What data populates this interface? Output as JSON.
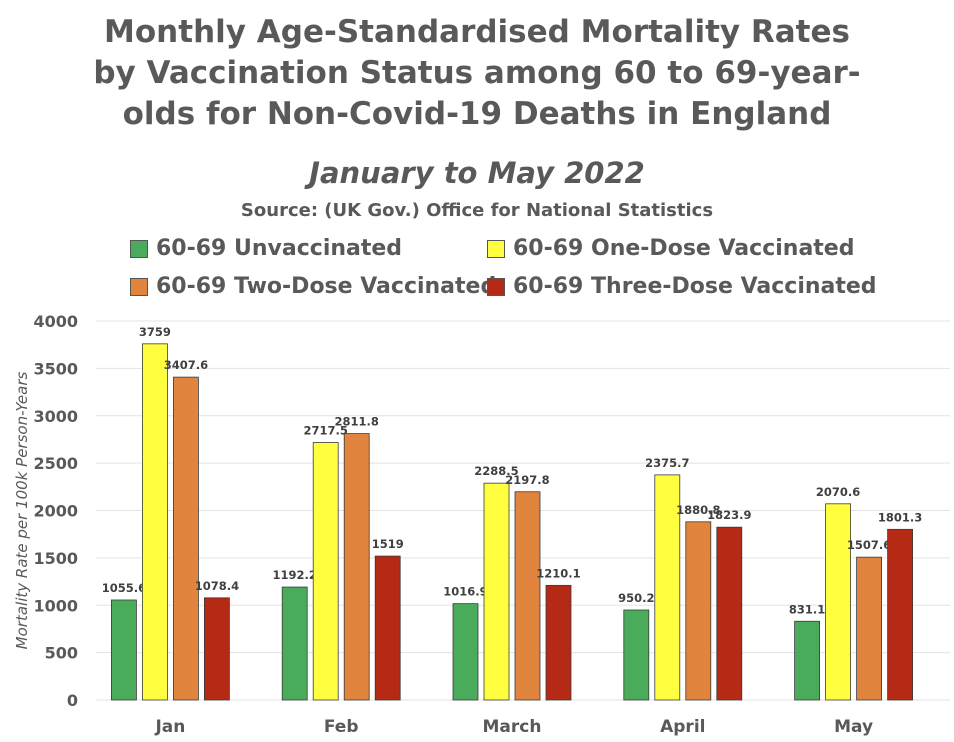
{
  "chart_data": {
    "type": "bar",
    "title": "Monthly Age-Standardised Mortality Rates by Vaccination Status among 60 to 69-year-olds for Non-Covid-19 Deaths in England",
    "subtitle": "January to May 2022",
    "source": "Source: (UK Gov.) Office for National Statistics",
    "ylabel": "Mortality Rate per 100k Person-Years",
    "xlabel": "",
    "ylim": [
      0,
      4000
    ],
    "yticks": [
      0,
      500,
      1000,
      1500,
      2000,
      2500,
      3000,
      3500,
      4000
    ],
    "grid": true,
    "legend_position": "top",
    "categories": [
      "Jan",
      "Feb",
      "March",
      "April",
      "May"
    ],
    "series": [
      {
        "name": "60-69 Unvaccinated",
        "color": "#4aac5a",
        "values": [
          1055.6,
          1192.2,
          1016.9,
          950.2,
          831.1
        ]
      },
      {
        "name": "60-69 One-Dose Vaccinated",
        "color": "#ffff40",
        "values": [
          3759,
          2717.5,
          2288.5,
          2375.7,
          2070.6
        ]
      },
      {
        "name": "60-69 Two-Dose Vaccinated",
        "color": "#e0843e",
        "values": [
          3407.6,
          2811.8,
          2197.8,
          1880.8,
          1507.6
        ]
      },
      {
        "name": "60-69 Three-Dose Vaccinated",
        "color": "#b52a15",
        "values": [
          1078.4,
          1519,
          1210.1,
          1823.9,
          1801.3
        ]
      }
    ]
  }
}
